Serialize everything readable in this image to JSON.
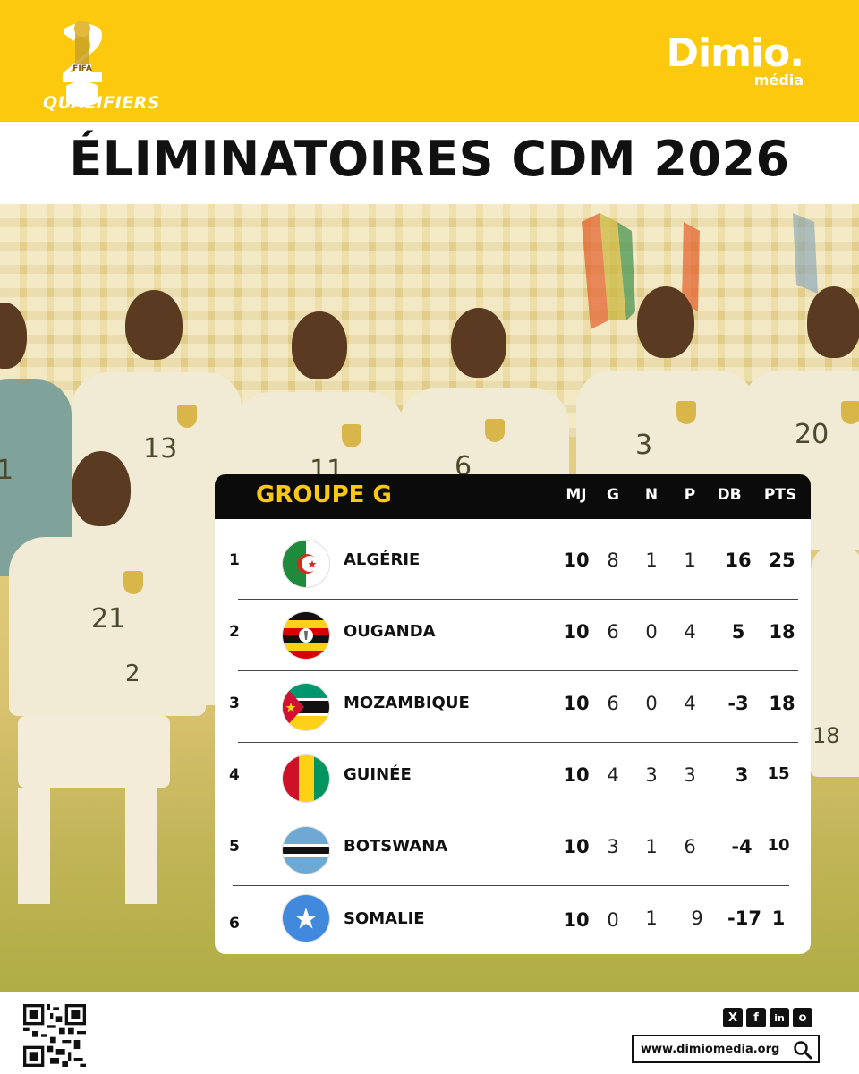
{
  "header": {
    "logo_badge_text": "FIFA",
    "qualifiers_text": "QUALIFIERS",
    "brand_name": "Dimio.",
    "brand_sub": "média"
  },
  "title": "ÉLIMINATOIRES CDM 2026",
  "photo": {
    "jersey_numbers": [
      "13",
      "11",
      "6",
      "3",
      "20",
      "21",
      "2",
      "18",
      "1"
    ]
  },
  "table": {
    "group_title": "GROUPE G",
    "columns": [
      "MJ",
      "G",
      "N",
      "P",
      "DB",
      "PTS"
    ],
    "rows": [
      {
        "rank": "1",
        "team": "ALGÉRIE",
        "flag": "algeria-flag",
        "mj": "10",
        "g": "8",
        "n": "1",
        "p": "1",
        "db": "16",
        "pts": "25"
      },
      {
        "rank": "2",
        "team": "OUGANDA",
        "flag": "uganda-flag",
        "mj": "10",
        "g": "6",
        "n": "0",
        "p": "4",
        "db": "5",
        "pts": "18"
      },
      {
        "rank": "3",
        "team": "MOZAMBIQUE",
        "flag": "mozambique-flag",
        "mj": "10",
        "g": "6",
        "n": "0",
        "p": "4",
        "db": "-3",
        "pts": "18"
      },
      {
        "rank": "4",
        "team": "GUINÉE",
        "flag": "guinea-flag",
        "mj": "10",
        "g": "4",
        "n": "3",
        "p": "3",
        "db": "3",
        "pts": "15"
      },
      {
        "rank": "5",
        "team": "BOTSWANA",
        "flag": "botswana-flag",
        "mj": "10",
        "g": "3",
        "n": "1",
        "p": "6",
        "db": "-4",
        "pts": "10"
      },
      {
        "rank": "6",
        "team": "SOMALIE",
        "flag": "somalia-flag",
        "mj": "10",
        "g": "0",
        "n": "1",
        "p": "9",
        "db": "-17",
        "pts": "1"
      }
    ]
  },
  "footer": {
    "social": [
      "X",
      "f",
      "in",
      "o"
    ],
    "social_icons": [
      "x-icon",
      "facebook-icon",
      "linkedin-icon",
      "instagram-icon"
    ],
    "url": "www.dimiomedia.org"
  },
  "colors": {
    "accent_yellow": "#fcc90f",
    "table_header": "#0b0b0b"
  }
}
